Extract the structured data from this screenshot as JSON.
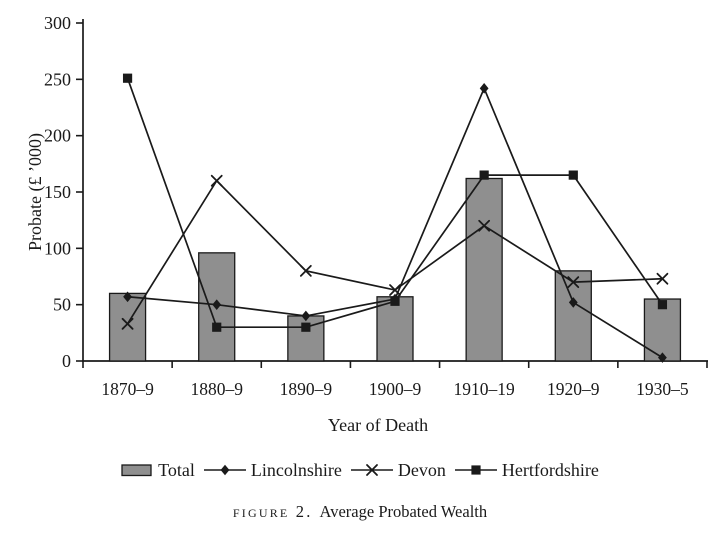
{
  "chart_data": {
    "type": "bar+line",
    "title": "Average Probated Wealth",
    "xlabel": "Year of Death",
    "ylabel": "Probate (£ ’000)",
    "categories": [
      "1870–9",
      "1880–9",
      "1890–9",
      "1900–9",
      "1910–19",
      "1920–9",
      "1930–5"
    ],
    "ylim": [
      0,
      300
    ],
    "yticks": [
      0,
      50,
      100,
      150,
      200,
      250,
      300
    ],
    "grid": false,
    "legend_position": "bottom",
    "bar_color": "#8f8f8f",
    "ink_color": "#1a1a1a",
    "series": [
      {
        "name": "Total",
        "type": "bar",
        "marker": "rect",
        "color": "#8f8f8f",
        "values": [
          60,
          96,
          40,
          57,
          162,
          80,
          55
        ]
      },
      {
        "name": "Lincolnshire",
        "type": "line",
        "marker": "diamond",
        "color": "#1a1a1a",
        "values": [
          57,
          50,
          40,
          55,
          242,
          52,
          3
        ]
      },
      {
        "name": "Devon",
        "type": "line",
        "marker": "x",
        "color": "#1a1a1a",
        "values": [
          33,
          160,
          80,
          63,
          120,
          70,
          73
        ]
      },
      {
        "name": "Hertfordshire",
        "type": "line",
        "marker": "square",
        "color": "#1a1a1a",
        "values": [
          251,
          30,
          30,
          53,
          165,
          165,
          50
        ]
      }
    ]
  },
  "caption": {
    "label": "figure 2.",
    "title": "Average Probated Wealth"
  }
}
